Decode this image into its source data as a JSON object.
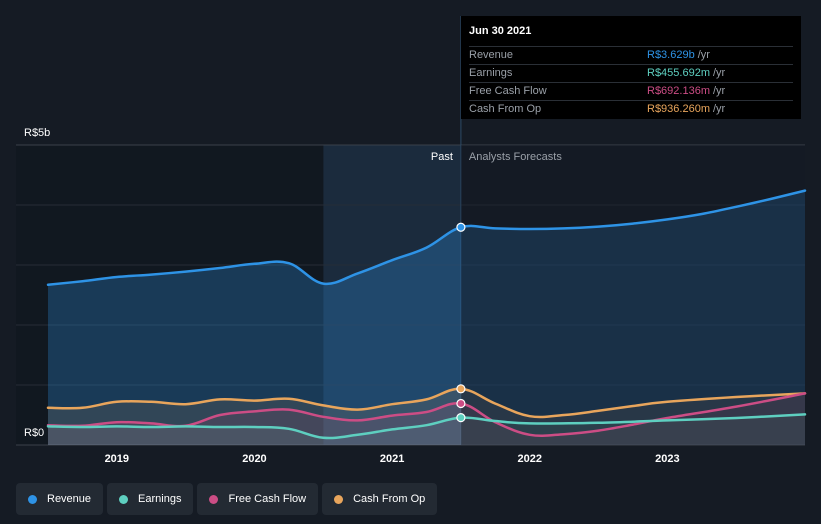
{
  "chart_data": {
    "type": "area",
    "y_unit_label_top": "R$5b",
    "y_unit_label_bottom": "R$0",
    "ylim": [
      0,
      5.0
    ],
    "xlim": [
      2018.5,
      2024.0
    ],
    "x_ticks": [
      2019,
      2020,
      2021,
      2022,
      2023
    ],
    "x_tick_labels": [
      "2019",
      "2020",
      "2021",
      "2022",
      "2023"
    ],
    "divider_x": 2021.5,
    "past_start_x": 2020.5,
    "past_label": "Past",
    "forecast_label": "Analysts Forecasts",
    "series": [
      {
        "name": "Revenue",
        "color": "#2e93e6",
        "points": [
          [
            2018.5,
            2.67
          ],
          [
            2018.75,
            2.73
          ],
          [
            2019.0,
            2.8
          ],
          [
            2019.25,
            2.84
          ],
          [
            2019.5,
            2.89
          ],
          [
            2019.75,
            2.95
          ],
          [
            2020.0,
            3.02
          ],
          [
            2020.25,
            3.03
          ],
          [
            2020.5,
            2.69
          ],
          [
            2020.75,
            2.86
          ],
          [
            2021.0,
            3.08
          ],
          [
            2021.25,
            3.29
          ],
          [
            2021.5,
            3.629
          ],
          [
            2021.75,
            3.61
          ],
          [
            2022.0,
            3.6
          ],
          [
            2022.25,
            3.61
          ],
          [
            2022.5,
            3.64
          ],
          [
            2022.75,
            3.69
          ],
          [
            2023.0,
            3.76
          ],
          [
            2023.25,
            3.85
          ],
          [
            2023.5,
            3.97
          ],
          [
            2023.75,
            4.1
          ],
          [
            2024.0,
            4.24
          ]
        ],
        "highlight": 3.629
      },
      {
        "name": "Earnings",
        "color": "#5ecfc0",
        "points": [
          [
            2018.5,
            0.31
          ],
          [
            2018.75,
            0.3
          ],
          [
            2019.0,
            0.31
          ],
          [
            2019.25,
            0.3
          ],
          [
            2019.5,
            0.31
          ],
          [
            2019.75,
            0.3
          ],
          [
            2020.0,
            0.3
          ],
          [
            2020.25,
            0.27
          ],
          [
            2020.5,
            0.12
          ],
          [
            2020.75,
            0.17
          ],
          [
            2021.0,
            0.26
          ],
          [
            2021.25,
            0.33
          ],
          [
            2021.5,
            0.455692
          ],
          [
            2021.75,
            0.4
          ],
          [
            2022.0,
            0.36
          ],
          [
            2022.5,
            0.37
          ],
          [
            2023.0,
            0.41
          ],
          [
            2023.5,
            0.45
          ],
          [
            2024.0,
            0.51
          ]
        ],
        "highlight": 0.455692
      },
      {
        "name": "Free Cash Flow",
        "color": "#cc4d85",
        "points": [
          [
            2018.5,
            0.33
          ],
          [
            2018.75,
            0.32
          ],
          [
            2019.0,
            0.38
          ],
          [
            2019.25,
            0.36
          ],
          [
            2019.5,
            0.32
          ],
          [
            2019.75,
            0.5
          ],
          [
            2020.0,
            0.56
          ],
          [
            2020.25,
            0.59
          ],
          [
            2020.5,
            0.47
          ],
          [
            2020.75,
            0.41
          ],
          [
            2021.0,
            0.49
          ],
          [
            2021.25,
            0.55
          ],
          [
            2021.5,
            0.692136
          ],
          [
            2021.75,
            0.38
          ],
          [
            2022.0,
            0.17
          ],
          [
            2022.25,
            0.18
          ],
          [
            2022.5,
            0.24
          ],
          [
            2022.75,
            0.34
          ],
          [
            2023.0,
            0.45
          ],
          [
            2023.5,
            0.64
          ],
          [
            2024.0,
            0.86
          ]
        ],
        "highlight": 0.692136
      },
      {
        "name": "Cash From Op",
        "color": "#e8a55c",
        "points": [
          [
            2018.5,
            0.62
          ],
          [
            2018.75,
            0.62
          ],
          [
            2019.0,
            0.72
          ],
          [
            2019.25,
            0.72
          ],
          [
            2019.5,
            0.68
          ],
          [
            2019.75,
            0.76
          ],
          [
            2020.0,
            0.74
          ],
          [
            2020.25,
            0.77
          ],
          [
            2020.5,
            0.66
          ],
          [
            2020.75,
            0.59
          ],
          [
            2021.0,
            0.68
          ],
          [
            2021.25,
            0.76
          ],
          [
            2021.5,
            0.93626
          ],
          [
            2021.75,
            0.69
          ],
          [
            2022.0,
            0.48
          ],
          [
            2022.25,
            0.5
          ],
          [
            2022.5,
            0.57
          ],
          [
            2022.75,
            0.65
          ],
          [
            2023.0,
            0.72
          ],
          [
            2023.5,
            0.8
          ],
          [
            2024.0,
            0.86
          ]
        ],
        "highlight": 0.93626
      }
    ]
  },
  "tooltip": {
    "date": "Jun 30 2021",
    "rows": [
      {
        "label": "Revenue",
        "value": "R$3.629b",
        "unit": "/yr",
        "color": "#2e93e6"
      },
      {
        "label": "Earnings",
        "value": "R$455.692m",
        "unit": "/yr",
        "color": "#5ecfc0"
      },
      {
        "label": "Free Cash Flow",
        "value": "R$692.136m",
        "unit": "/yr",
        "color": "#cc4d85"
      },
      {
        "label": "Cash From Op",
        "value": "R$936.260m",
        "unit": "/yr",
        "color": "#e8a55c"
      }
    ]
  },
  "legend": [
    {
      "label": "Revenue",
      "color": "#2e93e6"
    },
    {
      "label": "Earnings",
      "color": "#5ecfc0"
    },
    {
      "label": "Free Cash Flow",
      "color": "#cc4d85"
    },
    {
      "label": "Cash From Op",
      "color": "#e8a55c"
    }
  ]
}
